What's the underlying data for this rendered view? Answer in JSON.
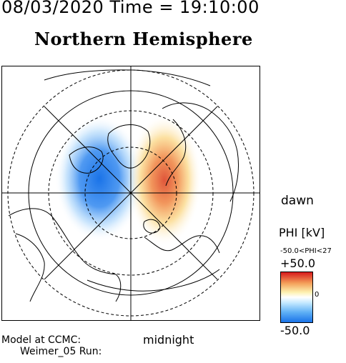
{
  "header": {
    "datetime": "08/03/2020 Time = 19:10:00",
    "hemisphere": "Northern Hemisphere"
  },
  "map": {
    "orientation_label": "dawn",
    "bottom_label": "midnight",
    "grid": "polar",
    "colors": {
      "positive": "#d7191c",
      "negative": "#1a73e8",
      "neutral": "#ffffff"
    }
  },
  "colorbar": {
    "title": "PHI [kV]",
    "range_text": "-50.0<PHI<27",
    "max_label": "+50.0",
    "zero_label": "0",
    "min_label": "-50.0"
  },
  "footer": {
    "line1": "Model at CCMC:",
    "line2": "Weimer_05 Run:"
  }
}
